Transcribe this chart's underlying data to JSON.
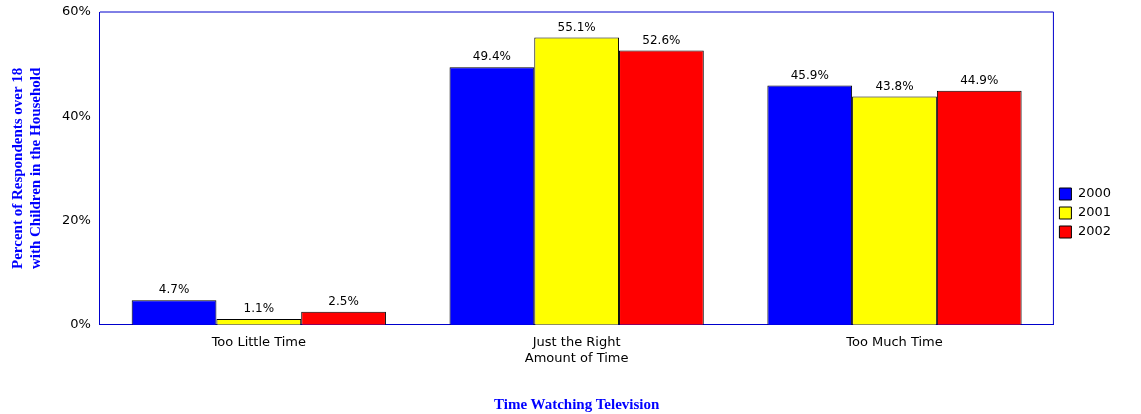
{
  "chart_data": {
    "type": "bar",
    "xlabel": "Time Watching Television",
    "ylabel": "Percent of Respondents over 18 with Children in the Household",
    "categories": [
      "Too Little Time",
      "Just the Right Amount of Time",
      "Too Much Time"
    ],
    "series": [
      {
        "name": "2000",
        "color": "#0000ff",
        "values": [
          4.7,
          49.4,
          45.9
        ],
        "value_labels": [
          "4.7%",
          "49.4%",
          "45.9%"
        ]
      },
      {
        "name": "2001",
        "color": "#ffff00",
        "values": [
          1.1,
          55.1,
          43.8
        ],
        "value_labels": [
          "1.1%",
          "55.1%",
          "43.8%"
        ]
      },
      {
        "name": "2002",
        "color": "#ff0000",
        "values": [
          2.5,
          52.6,
          44.9
        ],
        "value_labels": [
          "2.5%",
          "52.6%",
          "44.9%"
        ]
      }
    ],
    "ylim": [
      0,
      60
    ],
    "yticks": [
      {
        "value": 0,
        "label": "0%"
      },
      {
        "value": 20,
        "label": "20%"
      },
      {
        "value": 40,
        "label": "40%"
      },
      {
        "value": 60,
        "label": "60%"
      }
    ],
    "grid": false,
    "legend": "right"
  }
}
